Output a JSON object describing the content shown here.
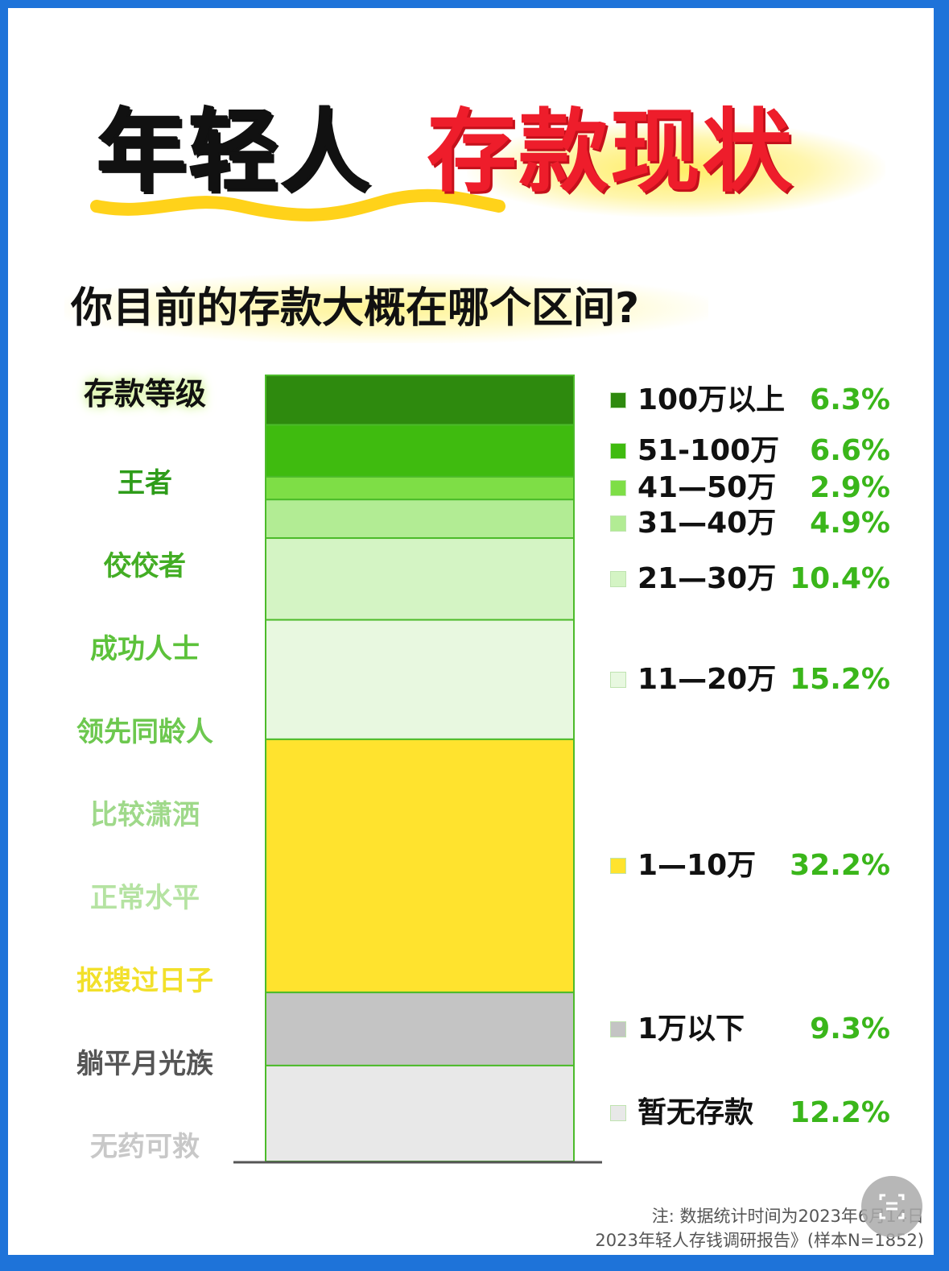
{
  "title": {
    "part1": "年轻人",
    "part2": "存款现状"
  },
  "question": "你目前的存款大概在哪个区间?",
  "level_header": "存款等级",
  "levels": [
    {
      "label": "王者",
      "color": "#2e9c1a"
    },
    {
      "label": "佼佼者",
      "color": "#43ad24"
    },
    {
      "label": "成功人士",
      "color": "#5cc23a"
    },
    {
      "label": "领先同龄人",
      "color": "#6dc84f"
    },
    {
      "label": "比较潇洒",
      "color": "#9fd98a"
    },
    {
      "label": "正常水平",
      "color": "#b5e3a2"
    },
    {
      "label": "抠搜过日子",
      "color": "#f2e02a"
    },
    {
      "label": "躺平月光族",
      "color": "#555555"
    },
    {
      "label": "无药可救",
      "color": "#c8c8c8"
    }
  ],
  "chart_data": {
    "type": "bar",
    "stacked": true,
    "categories": [
      "100万以上",
      "51-100万",
      "41—50万",
      "31—40万",
      "21—30万",
      "11—20万",
      "1—10万",
      "1万以下",
      "暂无存款"
    ],
    "values": [
      6.3,
      6.6,
      2.9,
      4.9,
      10.4,
      15.2,
      32.2,
      9.3,
      12.2
    ],
    "value_labels": [
      "6.3%",
      "6.6%",
      "2.9%",
      "4.9%",
      "10.4%",
      "15.2%",
      "32.2%",
      "9.3%",
      "12.2%"
    ],
    "unit": "%",
    "colors": [
      "#2e8a0e",
      "#3fbb0f",
      "#7ede46",
      "#b2ec94",
      "#d4f4c4",
      "#e8f8e0",
      "#ffe32e",
      "#c4c4c4",
      "#e8e8e8"
    ],
    "legend_placement": "right"
  },
  "footnote": {
    "line1": "注: 数据统计时间为2023年6月14日",
    "line2": "2023年轻人存钱调研报告》(样本N=1852)"
  },
  "accent_colors": {
    "title_red": "#ee1d2b",
    "percent_green": "#3ab61a",
    "frame_blue": "#1e73d9"
  },
  "icons": {
    "scan": "scan-text-icon"
  }
}
